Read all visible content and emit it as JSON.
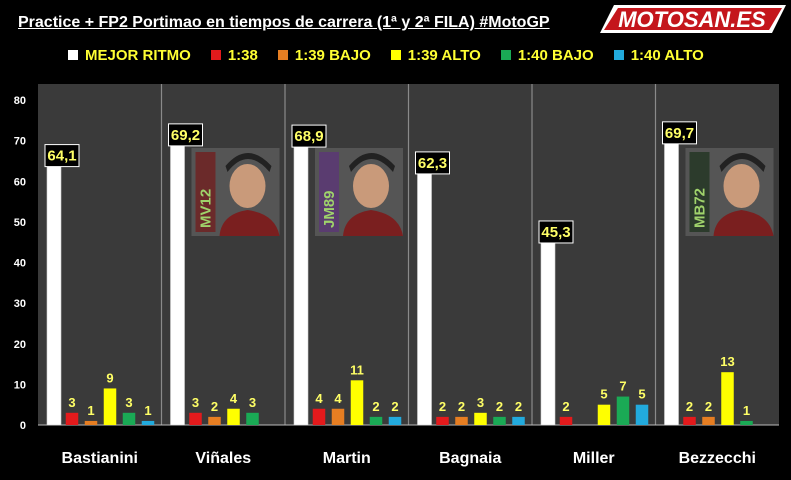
{
  "header": {
    "title": "Practice + FP2 Portimao en tiempos de carrera (1ª y 2ª FILA) #MotoGP",
    "logo_text": "MOTOSAN.ES"
  },
  "colors": {
    "background": "#000000",
    "plot_bg": "#3a3a3a",
    "mejor_ritmo": "#ffffff",
    "1_38": "#e31a1c",
    "1_39_bajo": "#e67e22",
    "1_39_alto": "#ffff00",
    "1_40_bajo": "#1aaa55",
    "1_40_alto": "#22aadd"
  },
  "chart_data": {
    "type": "bar",
    "title": "Practice + FP2 Portimao en tiempos de carrera (1ª y 2ª FILA) #MotoGP",
    "categories": [
      "Bastianini",
      "Viñales",
      "Martin",
      "Bagnaia",
      "Miller",
      "Bezzecchi"
    ],
    "series": [
      {
        "name": "MEJOR RITMO",
        "color": "#ffffff",
        "values": [
          64.1,
          69.2,
          68.9,
          62.3,
          45.3,
          69.7
        ],
        "labels": [
          "64,1",
          "69,2",
          "68,9",
          "62,3",
          "45,3",
          "69,7"
        ]
      },
      {
        "name": "1:38",
        "color": "#e31a1c",
        "values": [
          3,
          3,
          4,
          2,
          2,
          2
        ]
      },
      {
        "name": "1:39 BAJO",
        "color": "#e67e22",
        "values": [
          1,
          2,
          4,
          2,
          0,
          2
        ]
      },
      {
        "name": "1:39 ALTO",
        "color": "#ffff00",
        "values": [
          9,
          4,
          11,
          3,
          5,
          13
        ]
      },
      {
        "name": "1:40 BAJO",
        "color": "#1aaa55",
        "values": [
          3,
          3,
          2,
          2,
          7,
          1
        ]
      },
      {
        "name": "1:40 ALTO",
        "color": "#22aadd",
        "values": [
          1,
          0,
          2,
          2,
          5,
          0
        ]
      }
    ],
    "yticks": [
      "0",
      "10",
      "20",
      "30",
      "40",
      "50",
      "60",
      "70",
      "80"
    ],
    "ylim": [
      0,
      80
    ],
    "legend": "top",
    "grid": false,
    "rider_photos": [
      {
        "rider": "Viñales",
        "number": "MV12"
      },
      {
        "rider": "Martin",
        "number": "JM89"
      },
      {
        "rider": "Bezzecchi",
        "number": "MB72"
      }
    ]
  }
}
